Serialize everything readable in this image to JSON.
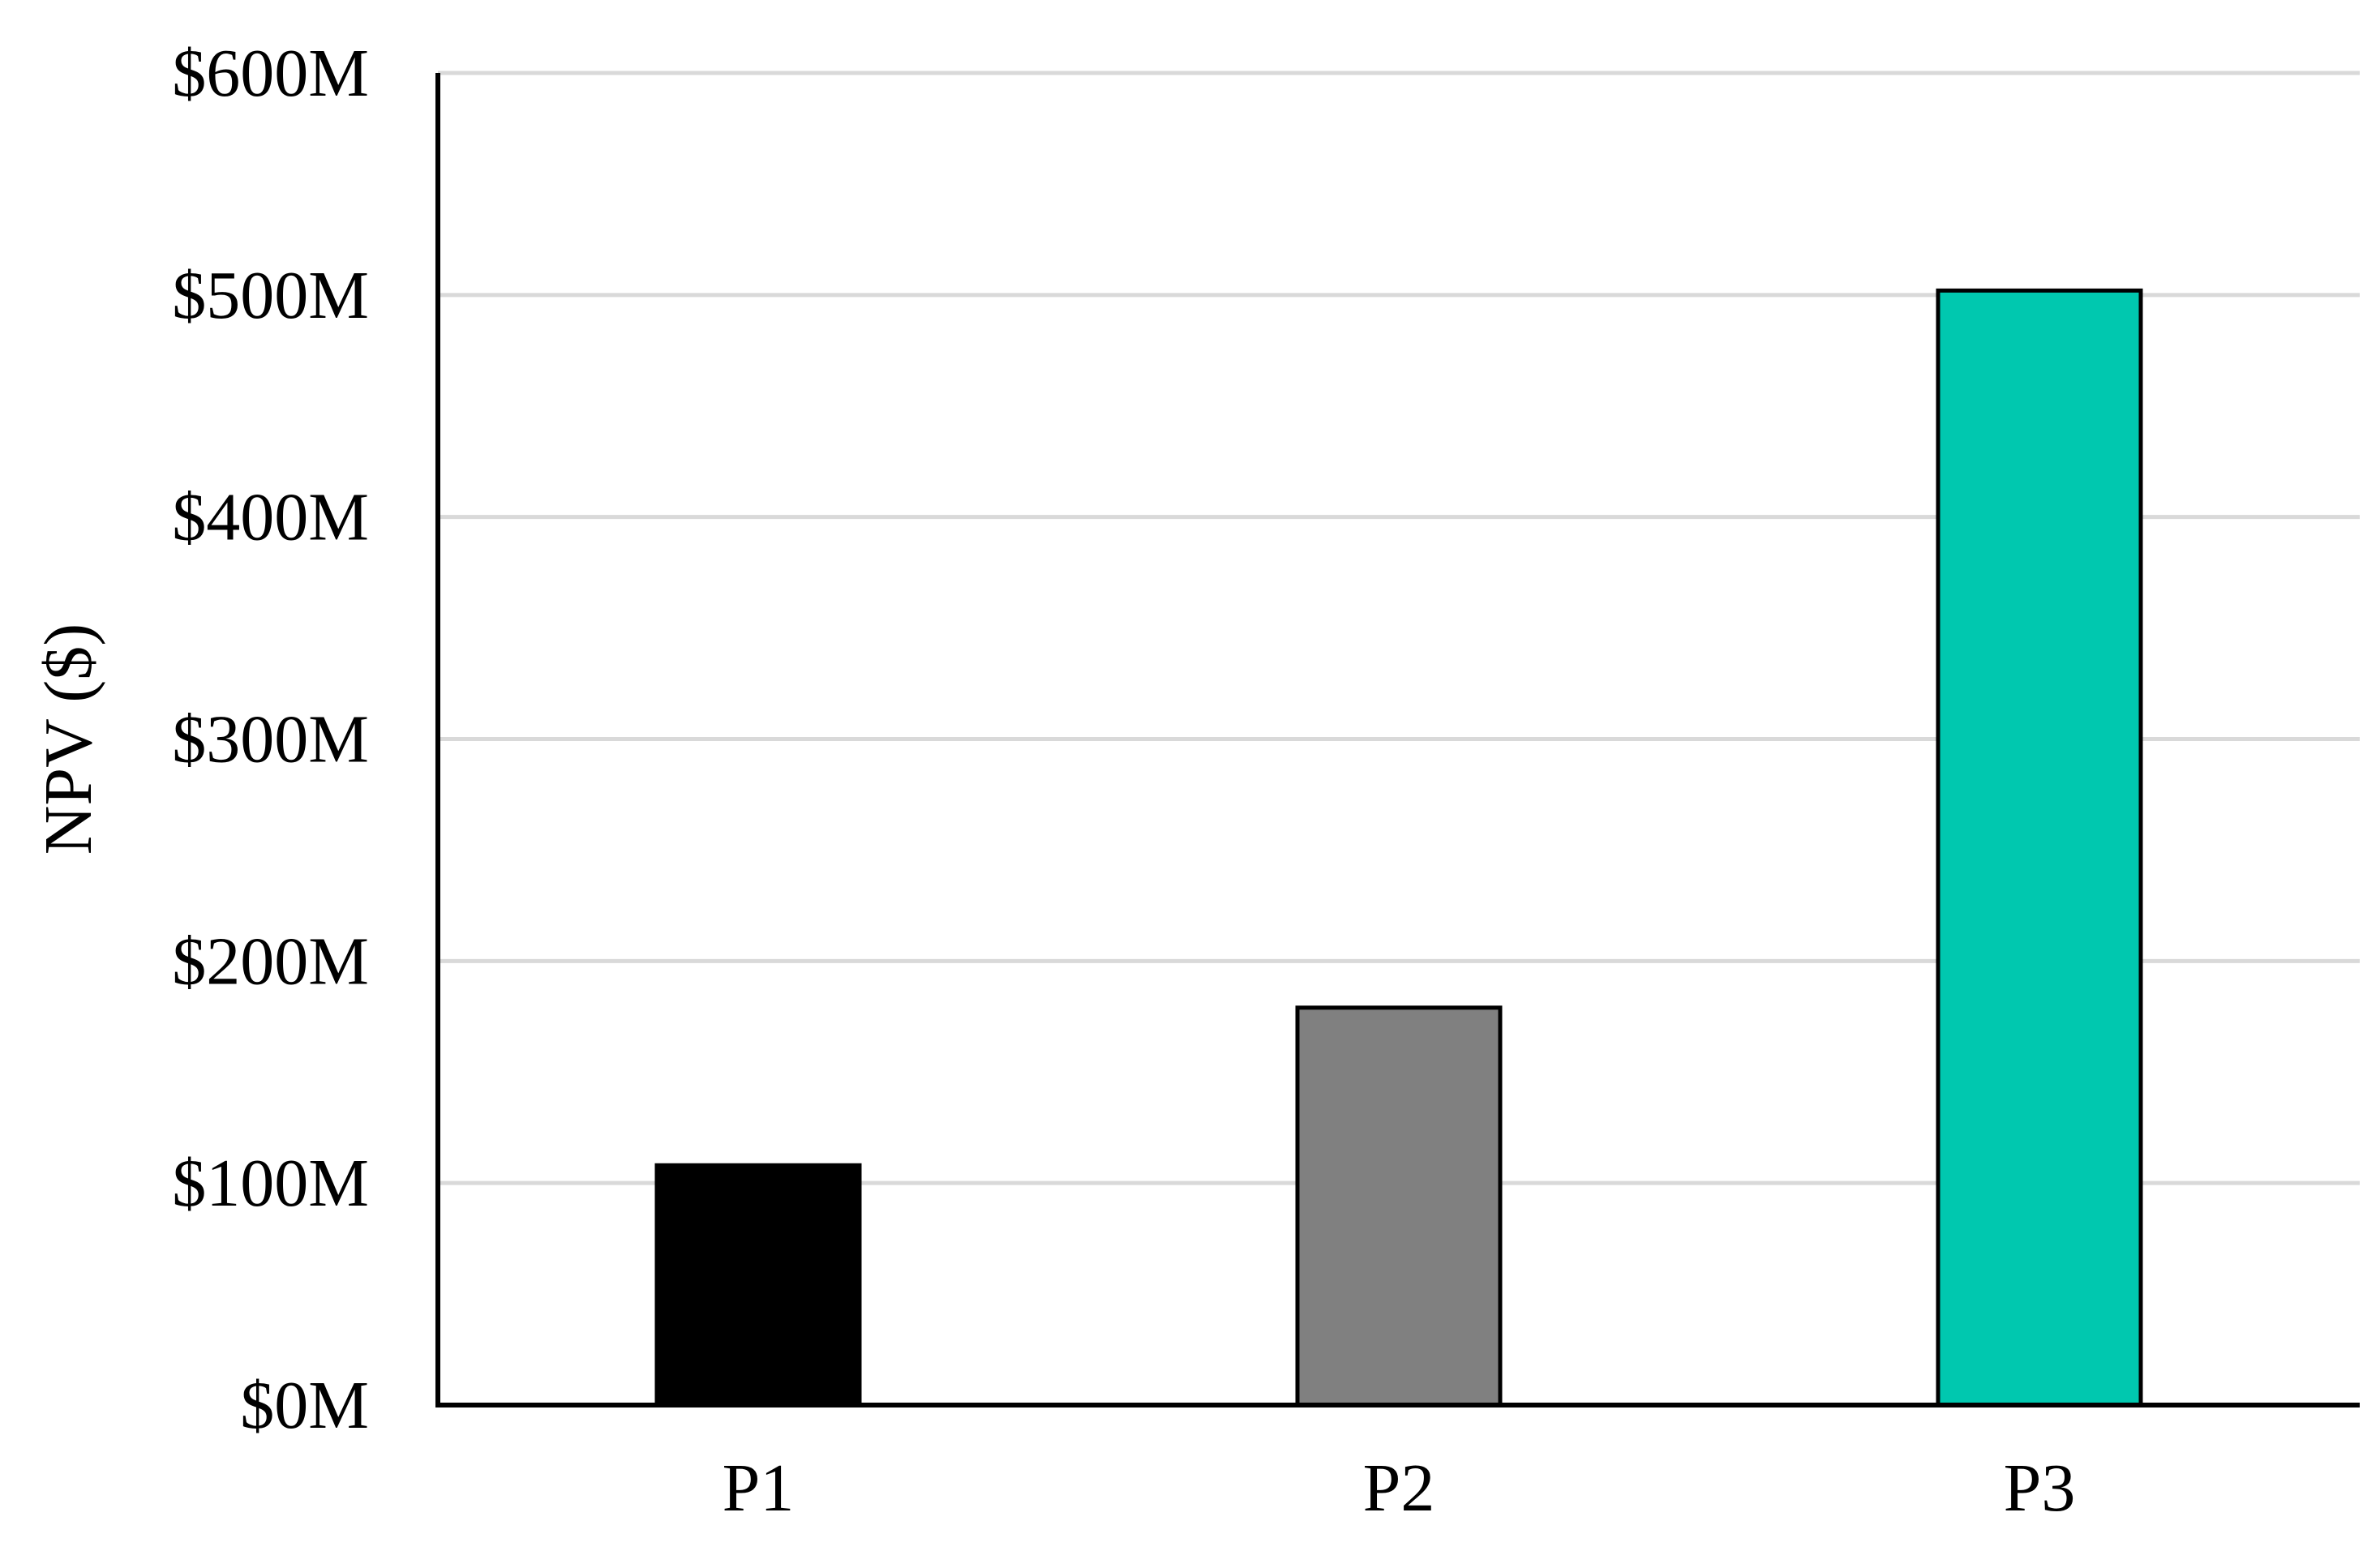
{
  "chart_data": {
    "type": "bar",
    "title": "",
    "xlabel": "",
    "ylabel": "NPV ($)",
    "categories": [
      "P1",
      "P2",
      "P3"
    ],
    "values": [
      108,
      179,
      502
    ],
    "value_unit": "$M",
    "colors": [
      "#000000",
      "#808080",
      "#00C8AF"
    ],
    "ylim": [
      0,
      600
    ],
    "yticks": [
      0,
      100,
      200,
      300,
      400,
      500,
      600
    ],
    "ytick_labels": [
      "$0M",
      "$100M",
      "$200M",
      "$300M",
      "$400M",
      "$500M",
      "$600M"
    ],
    "grid": true,
    "grid_color": "#D9D9D9",
    "bar_edge_color": "#000000",
    "legend": false
  }
}
